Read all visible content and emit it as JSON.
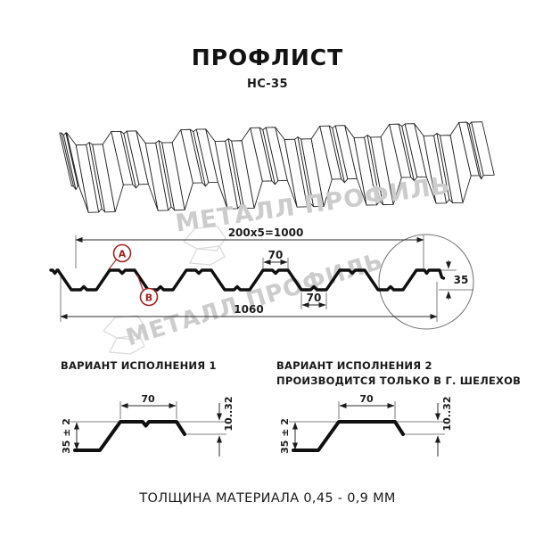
{
  "title": "ПРОФЛИСТ",
  "subtitle": "НС-35",
  "watermark": {
    "brand": "МЕТАЛЛ ПРОФИЛЬ"
  },
  "cross_section": {
    "dim_module": "200x5=1000",
    "dim_crest_top": "70",
    "dim_valley_bottom": "70",
    "dim_overall": "1060",
    "dim_height": "35",
    "label_a": "А",
    "label_b": "В"
  },
  "variants": [
    {
      "title": "ВАРИАНТ ИСПОЛНЕНИЯ 1",
      "dim_top": "70",
      "dim_edge": "10..32",
      "dim_height": "35 ± 2"
    },
    {
      "title": "ВАРИАНТ ИСПОЛНЕНИЯ 2",
      "note": "ПРОИЗВОДИТСЯ ТОЛЬКО В Г. ШЕЛЕХОВ",
      "dim_top": "70",
      "dim_edge": "10..32",
      "dim_height": "35 ± 2"
    }
  ],
  "footer": {
    "thickness_note": "ТОЛЩИНА МАТЕРИАЛА 0,45 - 0,9 ММ"
  },
  "colors": {
    "ink": "#1a1a1a",
    "marker_red": "#9e221d",
    "watermark_gray": "#cccccc"
  }
}
